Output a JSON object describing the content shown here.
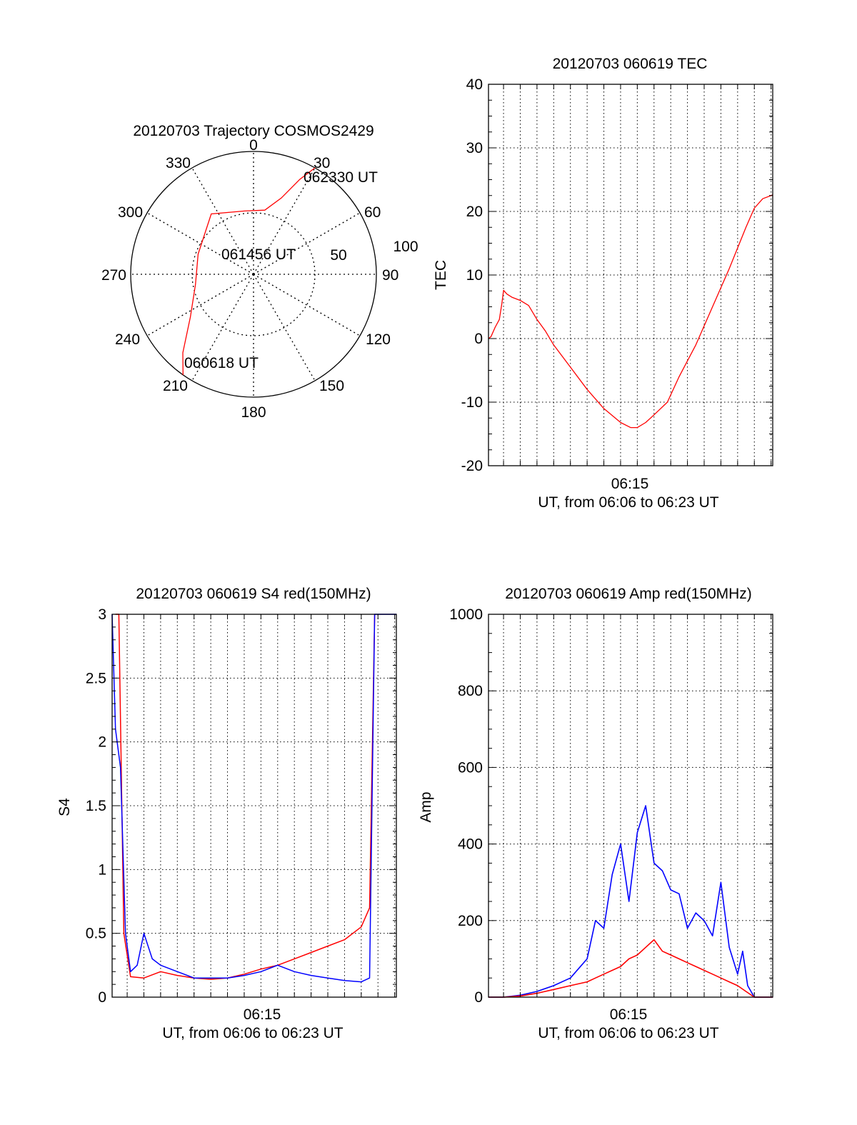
{
  "chart_data": [
    {
      "type": "polar",
      "title": "20120703 Trajectory COSMOS2429",
      "azimuth_labels": [
        "0",
        "30",
        "60",
        "90",
        "120",
        "150",
        "180",
        "210",
        "240",
        "270",
        "300",
        "330"
      ],
      "radial_labels": [
        "50",
        "100"
      ],
      "rlim": [
        0,
        100
      ],
      "grid": true,
      "series": [
        {
          "color": "#ff0000",
          "points": [
            {
              "az": 215,
              "r": 100
            },
            {
              "az": 222,
              "r": 86
            },
            {
              "az": 236,
              "r": 62
            },
            {
              "az": 260,
              "r": 48
            },
            {
              "az": 290,
              "r": 48
            },
            {
              "az": 325,
              "r": 60
            },
            {
              "az": 352,
              "r": 52
            },
            {
              "az": 10,
              "r": 53
            },
            {
              "az": 20,
              "r": 66
            },
            {
              "az": 26,
              "r": 86
            },
            {
              "az": 30,
              "r": 100
            }
          ]
        }
      ],
      "annotations": [
        {
          "text": "062330 UT",
          "az": 33,
          "r": 101
        },
        {
          "text": "061456 UT",
          "az": 5,
          "r": 10
        },
        {
          "text": "060618 UT",
          "az": 208,
          "r": 77
        }
      ]
    },
    {
      "type": "line",
      "title": "20120703 060619 TEC",
      "xlabel": "UT, from 06:06 to 06:23 UT",
      "ylabel": "TEC",
      "xticks": [
        "06:15"
      ],
      "xlim": [
        6.1,
        23.1
      ],
      "ylim": [
        -20,
        40
      ],
      "yticks": [
        -20,
        -10,
        0,
        10,
        20,
        30,
        40
      ],
      "grid": true,
      "series": [
        {
          "color": "#ff0000",
          "x": [
            6.1,
            6.25,
            6.5,
            6.75,
            6.9,
            7.0,
            7.2,
            7.5,
            8.0,
            8.5,
            9.0,
            9.5,
            10.0,
            11.0,
            12.0,
            13.0,
            14.0,
            14.6,
            15.0,
            15.5,
            16.0,
            16.8,
            17.5,
            18.5,
            19.5,
            20.5,
            21.5,
            22.0,
            22.5,
            23.1
          ],
          "y": [
            0.0,
            0.3,
            1.8,
            3.0,
            5.5,
            7.6,
            7.0,
            6.5,
            6.0,
            5.2,
            3.0,
            1.2,
            -1.0,
            -4.5,
            -8.0,
            -11.0,
            -13.2,
            -14.0,
            -14.0,
            -13.2,
            -12.0,
            -10.0,
            -6.0,
            -1.0,
            5.0,
            11.0,
            17.5,
            20.5,
            22.0,
            22.6
          ]
        }
      ]
    },
    {
      "type": "line",
      "title": "20120703 060619 S4 red(150MHz)",
      "xlabel": "UT, from 06:06 to 06:23 UT",
      "ylabel": "S4",
      "xticks": [
        "06:15"
      ],
      "xlim": [
        6.1,
        23.1
      ],
      "ylim": [
        0,
        3
      ],
      "yticks": [
        "0",
        "0.5",
        "1",
        "1.5",
        "2",
        "2.5",
        "3"
      ],
      "grid": true,
      "series": [
        {
          "color": "#ff0000",
          "x": [
            6.3,
            6.5,
            6.8,
            7.2,
            8.0,
            9.0,
            10.0,
            11.0,
            12.0,
            13.0,
            14.0,
            15.0,
            16.0,
            17.0,
            18.0,
            19.0,
            20.0,
            21.0,
            21.5,
            21.8
          ],
          "y": [
            3.0,
            3.0,
            0.5,
            0.16,
            0.15,
            0.2,
            0.17,
            0.15,
            0.14,
            0.15,
            0.18,
            0.22,
            0.25,
            0.3,
            0.35,
            0.4,
            0.45,
            0.55,
            0.7,
            3.0
          ]
        },
        {
          "color": "#0000ff",
          "x": [
            6.1,
            6.3,
            6.6,
            6.9,
            7.2,
            7.6,
            8.0,
            8.5,
            9.0,
            10.0,
            11.0,
            12.0,
            13.0,
            14.0,
            15.0,
            16.0,
            17.0,
            18.0,
            19.0,
            20.0,
            21.0,
            21.5,
            21.8,
            23.1
          ],
          "y": [
            3.0,
            2.1,
            1.8,
            0.5,
            0.2,
            0.25,
            0.5,
            0.3,
            0.25,
            0.2,
            0.15,
            0.15,
            0.15,
            0.17,
            0.2,
            0.25,
            0.2,
            0.17,
            0.15,
            0.13,
            0.12,
            0.15,
            3.0,
            3.0
          ]
        }
      ]
    },
    {
      "type": "line",
      "title": "20120703 060619 Amp red(150MHz)",
      "xlabel": "UT, from 06:06 to 06:23 UT",
      "ylabel": "Amp",
      "xticks": [
        "06:15"
      ],
      "xlim": [
        6.1,
        23.1
      ],
      "ylim": [
        0,
        1000
      ],
      "yticks": [
        0,
        200,
        400,
        600,
        800,
        1000
      ],
      "grid": true,
      "series": [
        {
          "color": "#0000ff",
          "x": [
            6.1,
            7.0,
            8.0,
            9.0,
            10.0,
            11.0,
            12.0,
            12.5,
            13.0,
            13.5,
            14.0,
            14.5,
            15.0,
            15.5,
            16.0,
            16.5,
            17.0,
            17.5,
            18.0,
            18.5,
            19.0,
            19.5,
            20.0,
            20.5,
            21.0,
            21.3,
            21.6,
            22.0,
            23.1
          ],
          "y": [
            0,
            0,
            5,
            15,
            30,
            50,
            100,
            200,
            180,
            320,
            400,
            250,
            430,
            500,
            350,
            330,
            280,
            270,
            180,
            220,
            200,
            160,
            300,
            130,
            60,
            120,
            30,
            0,
            0
          ]
        },
        {
          "color": "#ff0000",
          "x": [
            6.1,
            7.0,
            8.0,
            9.0,
            10.0,
            11.0,
            12.0,
            12.5,
            13.0,
            13.5,
            14.0,
            14.5,
            15.0,
            15.5,
            16.0,
            16.5,
            17.0,
            17.5,
            18.0,
            18.5,
            19.0,
            19.5,
            20.0,
            20.5,
            21.0,
            21.5,
            22.0,
            23.1
          ],
          "y": [
            0,
            0,
            3,
            10,
            20,
            30,
            40,
            50,
            60,
            70,
            80,
            100,
            110,
            130,
            150,
            120,
            110,
            100,
            90,
            80,
            70,
            60,
            50,
            40,
            30,
            15,
            0,
            0
          ]
        }
      ]
    }
  ]
}
